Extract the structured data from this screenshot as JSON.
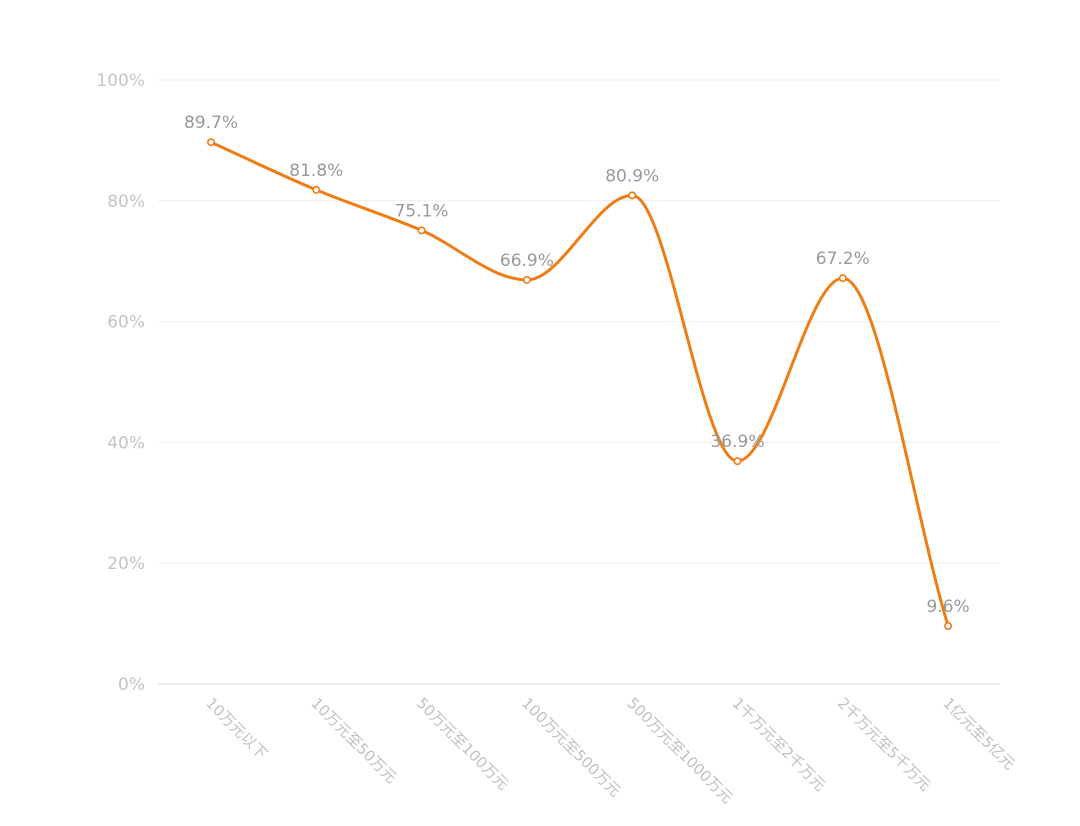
{
  "chart_data": {
    "type": "line",
    "categories": [
      "10万元以下",
      "10万元至50万元",
      "50万元至100万元",
      "100万元至500万元",
      "500万元至1000万元",
      "1千万元至2千万元",
      "2千万元至5千万元",
      "1亿元至5亿元"
    ],
    "values": [
      89.7,
      81.8,
      75.1,
      66.9,
      80.9,
      36.9,
      67.2,
      9.6
    ],
    "data_labels": [
      "89.7%",
      "81.8%",
      "75.1%",
      "66.9%",
      "80.9%",
      "36.9%",
      "67.2%",
      "9.6%"
    ],
    "y_ticks": [
      0,
      20,
      40,
      60,
      80,
      100
    ],
    "y_tick_labels": [
      "0%",
      "20%",
      "40%",
      "60%",
      "80%",
      "100%"
    ],
    "ylim": [
      0,
      100
    ],
    "grid": true,
    "legend": "none",
    "line_style": "smooth",
    "color": "#ed7d14"
  }
}
